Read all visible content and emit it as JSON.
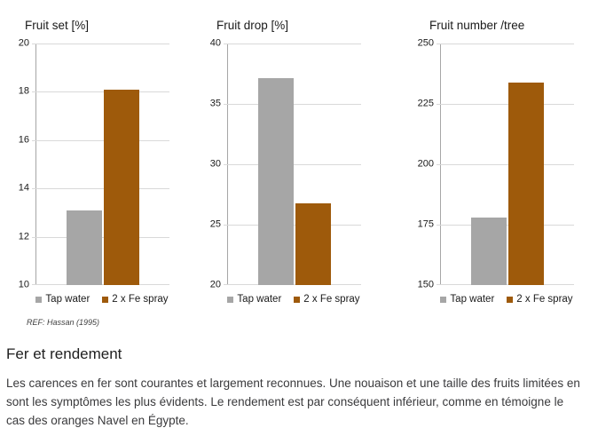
{
  "colors": {
    "tap_water": "#A6A6A6",
    "fe_spray": "#9E5A0B",
    "gridline": "#D9D9D9",
    "axis": "#A6A6A6"
  },
  "chart_data": [
    {
      "type": "bar",
      "title": "Fruit set [%]",
      "categories": [
        "Tap water",
        "2 x Fe spray"
      ],
      "values": [
        13.1,
        18.1
      ],
      "ylim": [
        10,
        20
      ],
      "yticks": [
        10,
        12,
        14,
        16,
        18,
        20
      ],
      "grid": true,
      "legend_position": "bottom"
    },
    {
      "type": "bar",
      "title": "Fruit drop [%]",
      "categories": [
        "Tap water",
        "2 x Fe spray"
      ],
      "values": [
        37.1,
        26.8
      ],
      "ylim": [
        20,
        40
      ],
      "yticks": [
        20,
        25,
        30,
        35,
        40
      ],
      "grid": true,
      "legend_position": "bottom"
    },
    {
      "type": "bar",
      "title": "Fruit number /tree",
      "categories": [
        "Tap water",
        "2 x Fe spray"
      ],
      "values": [
        178,
        234
      ],
      "ylim": [
        150,
        250
      ],
      "yticks": [
        150,
        175,
        200,
        225,
        250
      ],
      "grid": true,
      "legend_position": "bottom"
    }
  ],
  "source": "REF: Hassan (1995)",
  "section": {
    "heading": "Fer et rendement",
    "body": "Les carences en fer sont courantes et largement reconnues. Une nouaison et une taille des fruits limitées en sont les symptômes les plus évidents. Le rendement est par conséquent inférieur, comme en témoigne le cas des oranges Navel en Égypte."
  }
}
